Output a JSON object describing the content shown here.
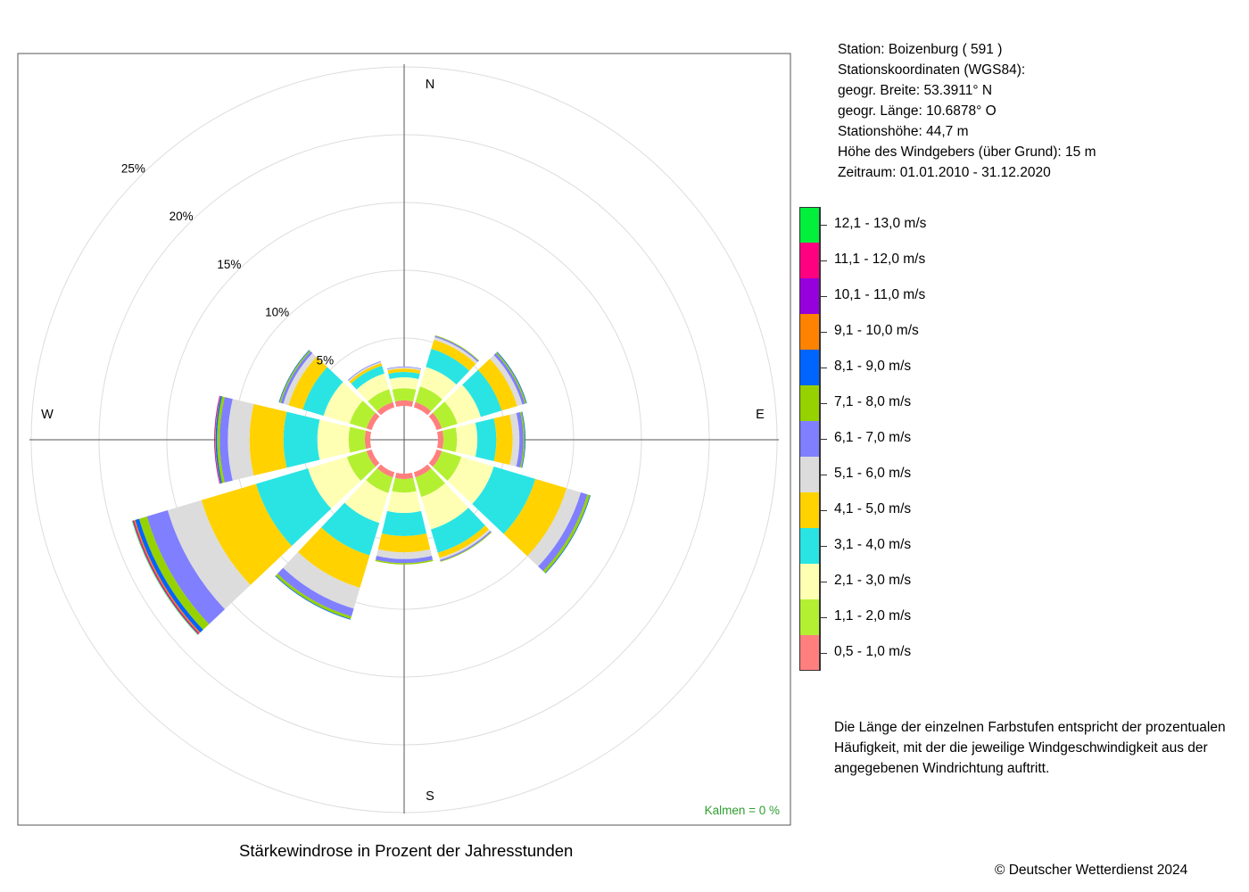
{
  "chart_data": {
    "type": "windrose",
    "title": "Stärkewindrose in Prozent der Jahresstunden",
    "directions": [
      "N",
      "NNO",
      "ONO",
      "O",
      "OSO",
      "SSO",
      "S",
      "SSW",
      "WSW",
      "W",
      "WNW",
      "NNW"
    ],
    "direction_labels": [
      "N",
      "E",
      "S",
      "W"
    ],
    "ring_labels": [
      "5%",
      "10%",
      "15%",
      "20%",
      "25%"
    ],
    "ring_values": [
      5,
      10,
      15,
      20,
      25
    ],
    "calm_label": "Kalmen  =  0 %",
    "bins": [
      {
        "label": "0,5 - 1,0 m/s",
        "color": "#FF7F7F"
      },
      {
        "label": "1,1 - 2,0 m/s",
        "color": "#B4F032"
      },
      {
        "label": "2,1 - 3,0 m/s",
        "color": "#FFFFB4"
      },
      {
        "label": "3,1 - 4,0 m/s",
        "color": "#2AE4E4"
      },
      {
        "label": "4,1 - 5,0 m/s",
        "color": "#FFD200"
      },
      {
        "label": "5,1 - 6,0 m/s",
        "color": "#DCDCDC"
      },
      {
        "label": "6,1 - 7,0 m/s",
        "color": "#7F7FFF"
      },
      {
        "label": "7,1 - 8,0 m/s",
        "color": "#96D200"
      },
      {
        "label": "8,1 - 9,0 m/s",
        "color": "#0064FF"
      },
      {
        "label": "9,1 - 10,0 m/s",
        "color": "#FF8200"
      },
      {
        "label": "10,1 - 11,0 m/s",
        "color": "#9600DC"
      },
      {
        "label": "11,1 - 12,0 m/s",
        "color": "#FF0080"
      },
      {
        "label": "12,1 - 13,0 m/s",
        "color": "#00F03C"
      }
    ],
    "series": [
      {
        "direction": "N",
        "values": [
          0.4,
          0.9,
          0.8,
          0.4,
          0.25,
          0.1,
          0.05,
          0,
          0,
          0,
          0,
          0,
          0
        ]
      },
      {
        "direction": "NNO",
        "values": [
          0.4,
          1.2,
          1.5,
          1.4,
          0.7,
          0.2,
          0.1,
          0.05,
          0,
          0,
          0,
          0,
          0
        ]
      },
      {
        "direction": "ONO",
        "values": [
          0.4,
          1.2,
          1.8,
          1.6,
          1.2,
          0.4,
          0.2,
          0.1,
          0.05,
          0,
          0,
          0,
          0
        ]
      },
      {
        "direction": "O",
        "values": [
          0.4,
          1.0,
          1.5,
          1.4,
          1.2,
          0.5,
          0.3,
          0.1,
          0.05,
          0,
          0,
          0,
          0
        ]
      },
      {
        "direction": "OSO",
        "values": [
          0.4,
          1.5,
          2.5,
          3.2,
          2.4,
          1.1,
          0.5,
          0.2,
          0.05,
          0,
          0,
          0,
          0
        ]
      },
      {
        "direction": "SSO",
        "values": [
          0.4,
          1.5,
          2.5,
          1.8,
          0.4,
          0.15,
          0.1,
          0.05,
          0,
          0,
          0,
          0,
          0
        ]
      },
      {
        "direction": "S",
        "values": [
          0.4,
          1.0,
          1.5,
          1.7,
          1.2,
          0.5,
          0.3,
          0.1,
          0,
          0,
          0,
          0,
          0
        ]
      },
      {
        "direction": "SSW",
        "values": [
          0.4,
          1.2,
          2.3,
          2.5,
          2.5,
          1.6,
          0.6,
          0.2,
          0.05,
          0,
          0,
          0,
          0
        ]
      },
      {
        "direction": "WSW",
        "values": [
          0.4,
          1.5,
          3.0,
          4.0,
          4.2,
          2.6,
          1.6,
          0.6,
          0.3,
          0.1,
          0.05,
          0.05,
          0.05
        ]
      },
      {
        "direction": "W",
        "values": [
          0.4,
          1.2,
          2.3,
          2.5,
          2.5,
          1.6,
          0.6,
          0.2,
          0.1,
          0.05,
          0.05,
          0,
          0
        ]
      },
      {
        "direction": "WNW",
        "values": [
          0.4,
          1.3,
          2.0,
          1.6,
          1.1,
          0.4,
          0.2,
          0.1,
          0.05,
          0,
          0,
          0,
          0
        ]
      },
      {
        "direction": "NNW",
        "values": [
          0.4,
          1.0,
          1.2,
          0.6,
          0.2,
          0.1,
          0.05,
          0,
          0,
          0,
          0,
          0,
          0
        ]
      }
    ]
  },
  "station": {
    "line1": "Station:  Boizenburg  ( 591 )",
    "line2": "Stationskoordinaten (WGS84):",
    "line3": "geogr. Breite: 53.3911° N",
    "line4": "geogr. Länge: 10.6878° O",
    "line5": "Stationshöhe: 44,7 m",
    "line6": "Höhe des Windgebers (über Grund): 15 m",
    "line7": "Zeitraum: 01.01.2010 - 31.12.2020"
  },
  "note": "Die Länge der einzelnen Farbstufen entspricht der prozentualen Häufigkeit, mit der die jeweilige Windgeschwindigkeit aus der angegebenen Windrichtung auftritt.",
  "copyright": "© Deutscher Wetterdienst  2024"
}
